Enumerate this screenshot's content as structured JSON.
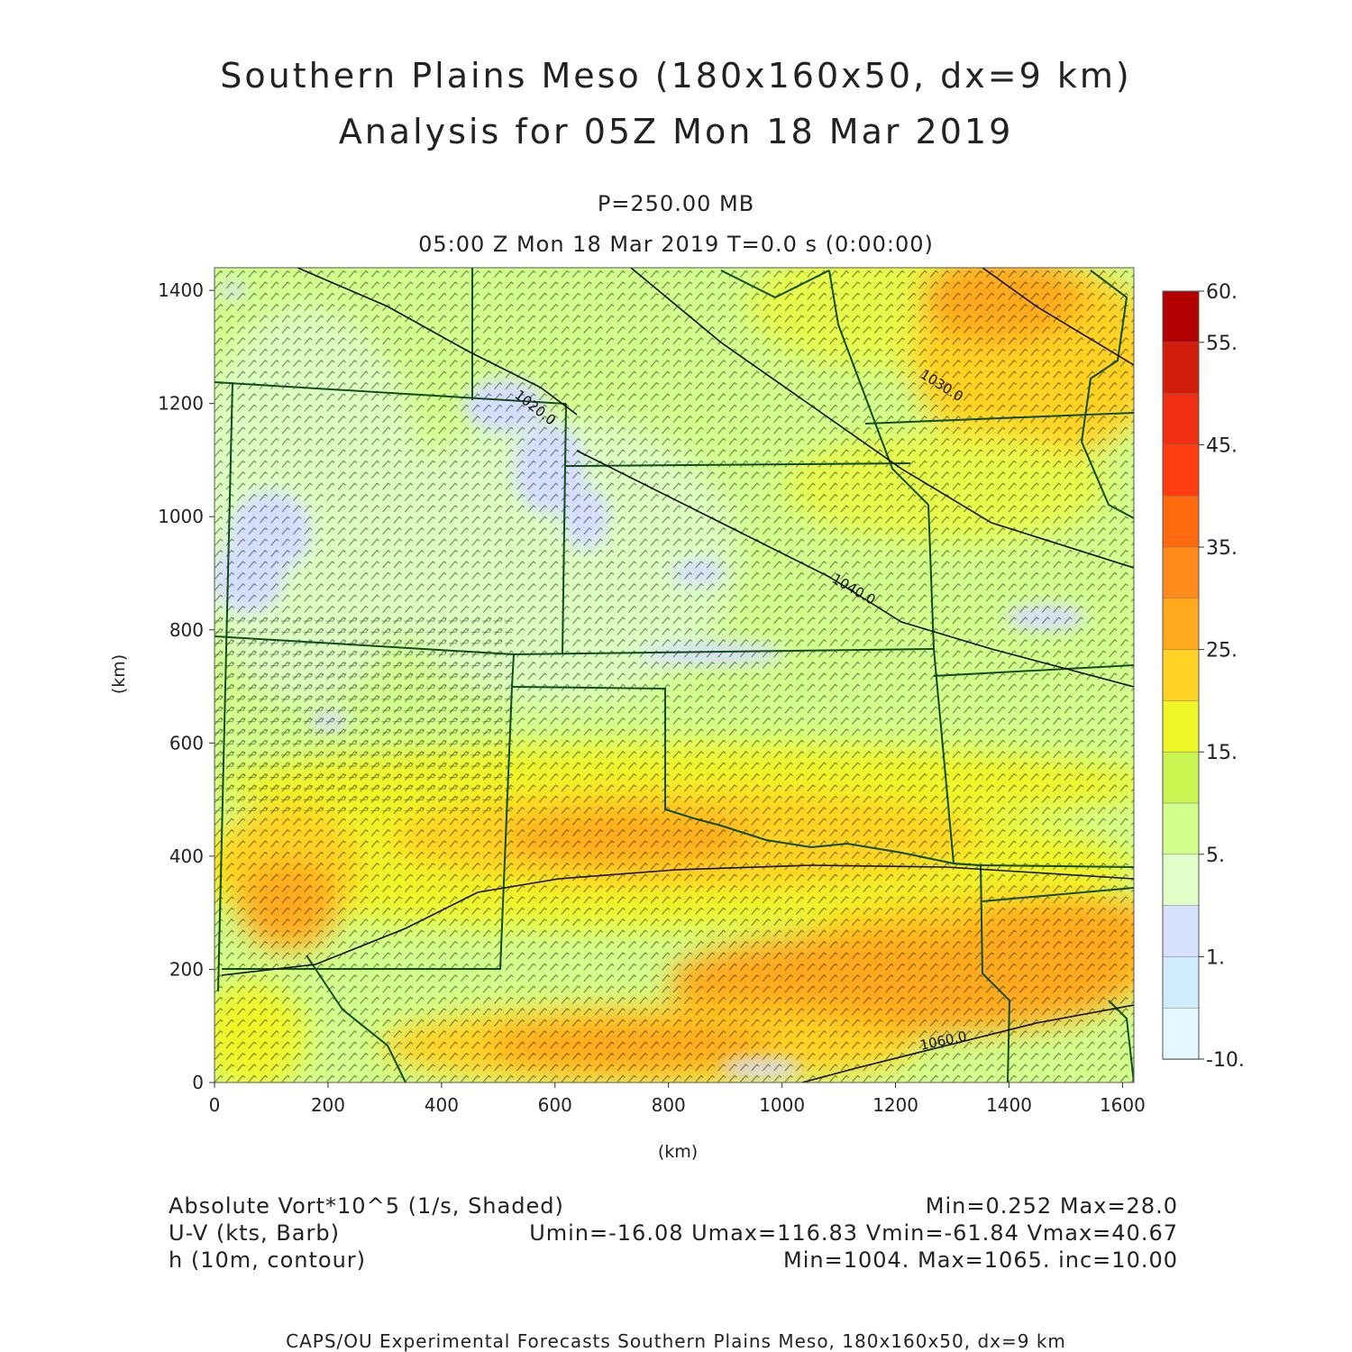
{
  "header": {
    "title_line1": "Southern Plains Meso (180x160x50, dx=9 km)",
    "title_line2": "Analysis for 05Z Mon 18 Mar 2019",
    "level": "P=250.00 MB",
    "time_line": "05:00 Z Mon 18 Mar 2019    T=0.0 s (0:00:00)"
  },
  "axes": {
    "x_label": "(km)",
    "y_label": "(km)",
    "x_ticks": [
      0,
      200,
      400,
      600,
      800,
      1000,
      1200,
      1400,
      1600
    ],
    "y_ticks": [
      0,
      200,
      400,
      600,
      800,
      1000,
      1200,
      1400
    ],
    "x_range": [
      0,
      1620
    ],
    "y_range": [
      0,
      1440
    ]
  },
  "colorbar": {
    "labels": [
      "60.",
      "55.",
      "45.",
      "35.",
      "25.",
      "15.",
      "5.",
      "1.",
      "-10."
    ],
    "colors": [
      "#b40000",
      "#d21d0c",
      "#f02e14",
      "#ff3c10",
      "#ff6a0f",
      "#ff8a1a",
      "#ffaa1e",
      "#ffd224",
      "#f0f527",
      "#c8f550",
      "#d2ff8c",
      "#e0ffc8",
      "#d8e0ff",
      "#d2ecff",
      "#e4f8ff"
    ]
  },
  "contours": [
    {
      "label": "1020.0"
    },
    {
      "label": "1030.0"
    },
    {
      "label": "1040.0"
    },
    {
      "label": "1060.0"
    }
  ],
  "legend": {
    "field1": "Absolute Vort*10^5 (1/s, Shaded)",
    "field1_stats": "Min=0.252 Max=28.0",
    "field2": "U-V (kts, Barb)",
    "field2_stats": "Umin=-16.08 Umax=116.83 Vmin=-61.84 Vmax=40.67",
    "field3": "h (10m, contour)",
    "field3_stats": "Min=1004. Max=1065. inc=10.00"
  },
  "footer": {
    "credit": "CAPS/OU Experimental Forecasts  Southern Plains Meso, 180x160x50, dx=9 km"
  }
}
